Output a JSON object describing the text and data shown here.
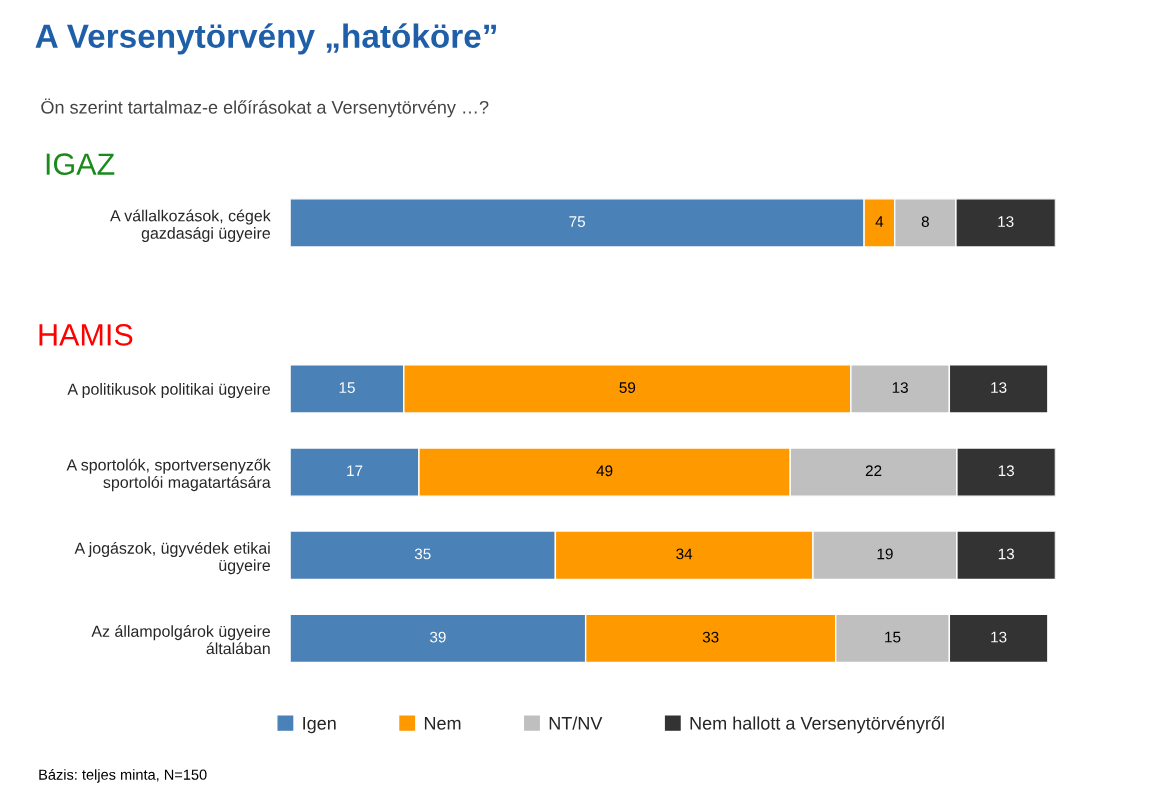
{
  "chart_data": [
    {
      "type": "bar",
      "orientation": "horizontal",
      "stacked": true,
      "title": "A Versenytörvény „hatóköre”",
      "subtitle": "Ön szerint tartalmaz-e előírásokat a Versenytörvény …?",
      "annotations": [
        "IGAZ"
      ],
      "categories": [
        "A vállalkozások, cégek\ngazdasági ügyeire"
      ],
      "xlim": [
        0,
        100
      ],
      "tick_labels": "y",
      "data_labels": true,
      "legend": false,
      "series": [
        {
          "color": "#4a81b6",
          "values": [
            75
          ]
        },
        {
          "color": "#ff9900",
          "values": [
            4
          ]
        },
        {
          "color": "#bfbfbf",
          "values": [
            8
          ]
        },
        {
          "color": "#333333",
          "values": [
            13
          ]
        }
      ]
    },
    {
      "type": "bar",
      "orientation": "horizontal",
      "stacked": true,
      "title": "HAMIS",
      "annotations": [
        "Bázis: teljes minta, N=150"
      ],
      "categories": [
        "A politikusok politikai ügyeire",
        "A sportolók, sportversenyzők\nsportolói magatartására",
        "A jogászok, ügyvédek etikai\nügyeire",
        "Az állampolgárok ügyeire\náltalában"
      ],
      "xlim": [
        0,
        101
      ],
      "tick_labels": "y",
      "data_labels": true,
      "legend": "bottom",
      "series": [
        {
          "name": "Igen",
          "color": "#4a81b6",
          "values": [
            15,
            17,
            35,
            39
          ]
        },
        {
          "name": "Nem",
          "color": "#ff9900",
          "values": [
            59,
            49,
            34,
            33
          ]
        },
        {
          "name": "NT/NV",
          "color": "#bfbfbf",
          "values": [
            13,
            22,
            19,
            15
          ]
        },
        {
          "name": "Nem hallott a Versenytörvényről",
          "color": "#333333",
          "values": [
            13,
            13,
            13,
            13
          ]
        }
      ]
    }
  ]
}
